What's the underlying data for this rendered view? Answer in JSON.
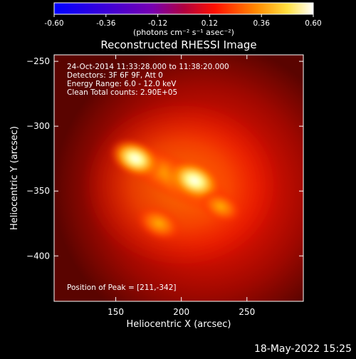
{
  "chart_data": {
    "type": "heatmap",
    "title": "Reconstructed RHESSI Image",
    "xlabel": "Heliocentric X (arcsec)",
    "ylabel": "Heliocentric Y (arcsec)",
    "xlim": [
      103,
      293
    ],
    "ylim": [
      -435,
      -245
    ],
    "x_ticks": [
      150,
      200,
      250
    ],
    "y_ticks": [
      -250,
      -300,
      -350,
      -400
    ],
    "colorbar": {
      "range": [
        -0.6,
        0.6
      ],
      "ticks": [
        "-0.60",
        "-0.36",
        "-0.12",
        "0.12",
        "0.36",
        "0.60"
      ],
      "unit_label": "(photons cm⁻² s⁻¹ asec⁻²)",
      "colors": [
        "#0000ff",
        "#5a00c8",
        "#8a00a0",
        "#ff0000",
        "#ff8c00",
        "#ffff80",
        "#ffffff"
      ]
    },
    "sources": [
      {
        "x": 210,
        "y": -342,
        "intensity": 1.0
      },
      {
        "x": 165,
        "y": -325,
        "intensity": 0.85
      },
      {
        "x": 183,
        "y": -375,
        "intensity": 0.65
      },
      {
        "x": 230,
        "y": -362,
        "intensity": 0.55
      }
    ],
    "annotations": [
      "24-Oct-2014 11:33:28.000 to 11:38:20.000",
      "Detectors: 3F 6F 9F, Att 0",
      "Energy Range: 6.0 - 12.0 keV",
      "Clean    Total counts: 2.90E+05"
    ],
    "peak_label": "Position of Peak = [211,-342]"
  },
  "timestamp": "18-May-2022 15:25"
}
